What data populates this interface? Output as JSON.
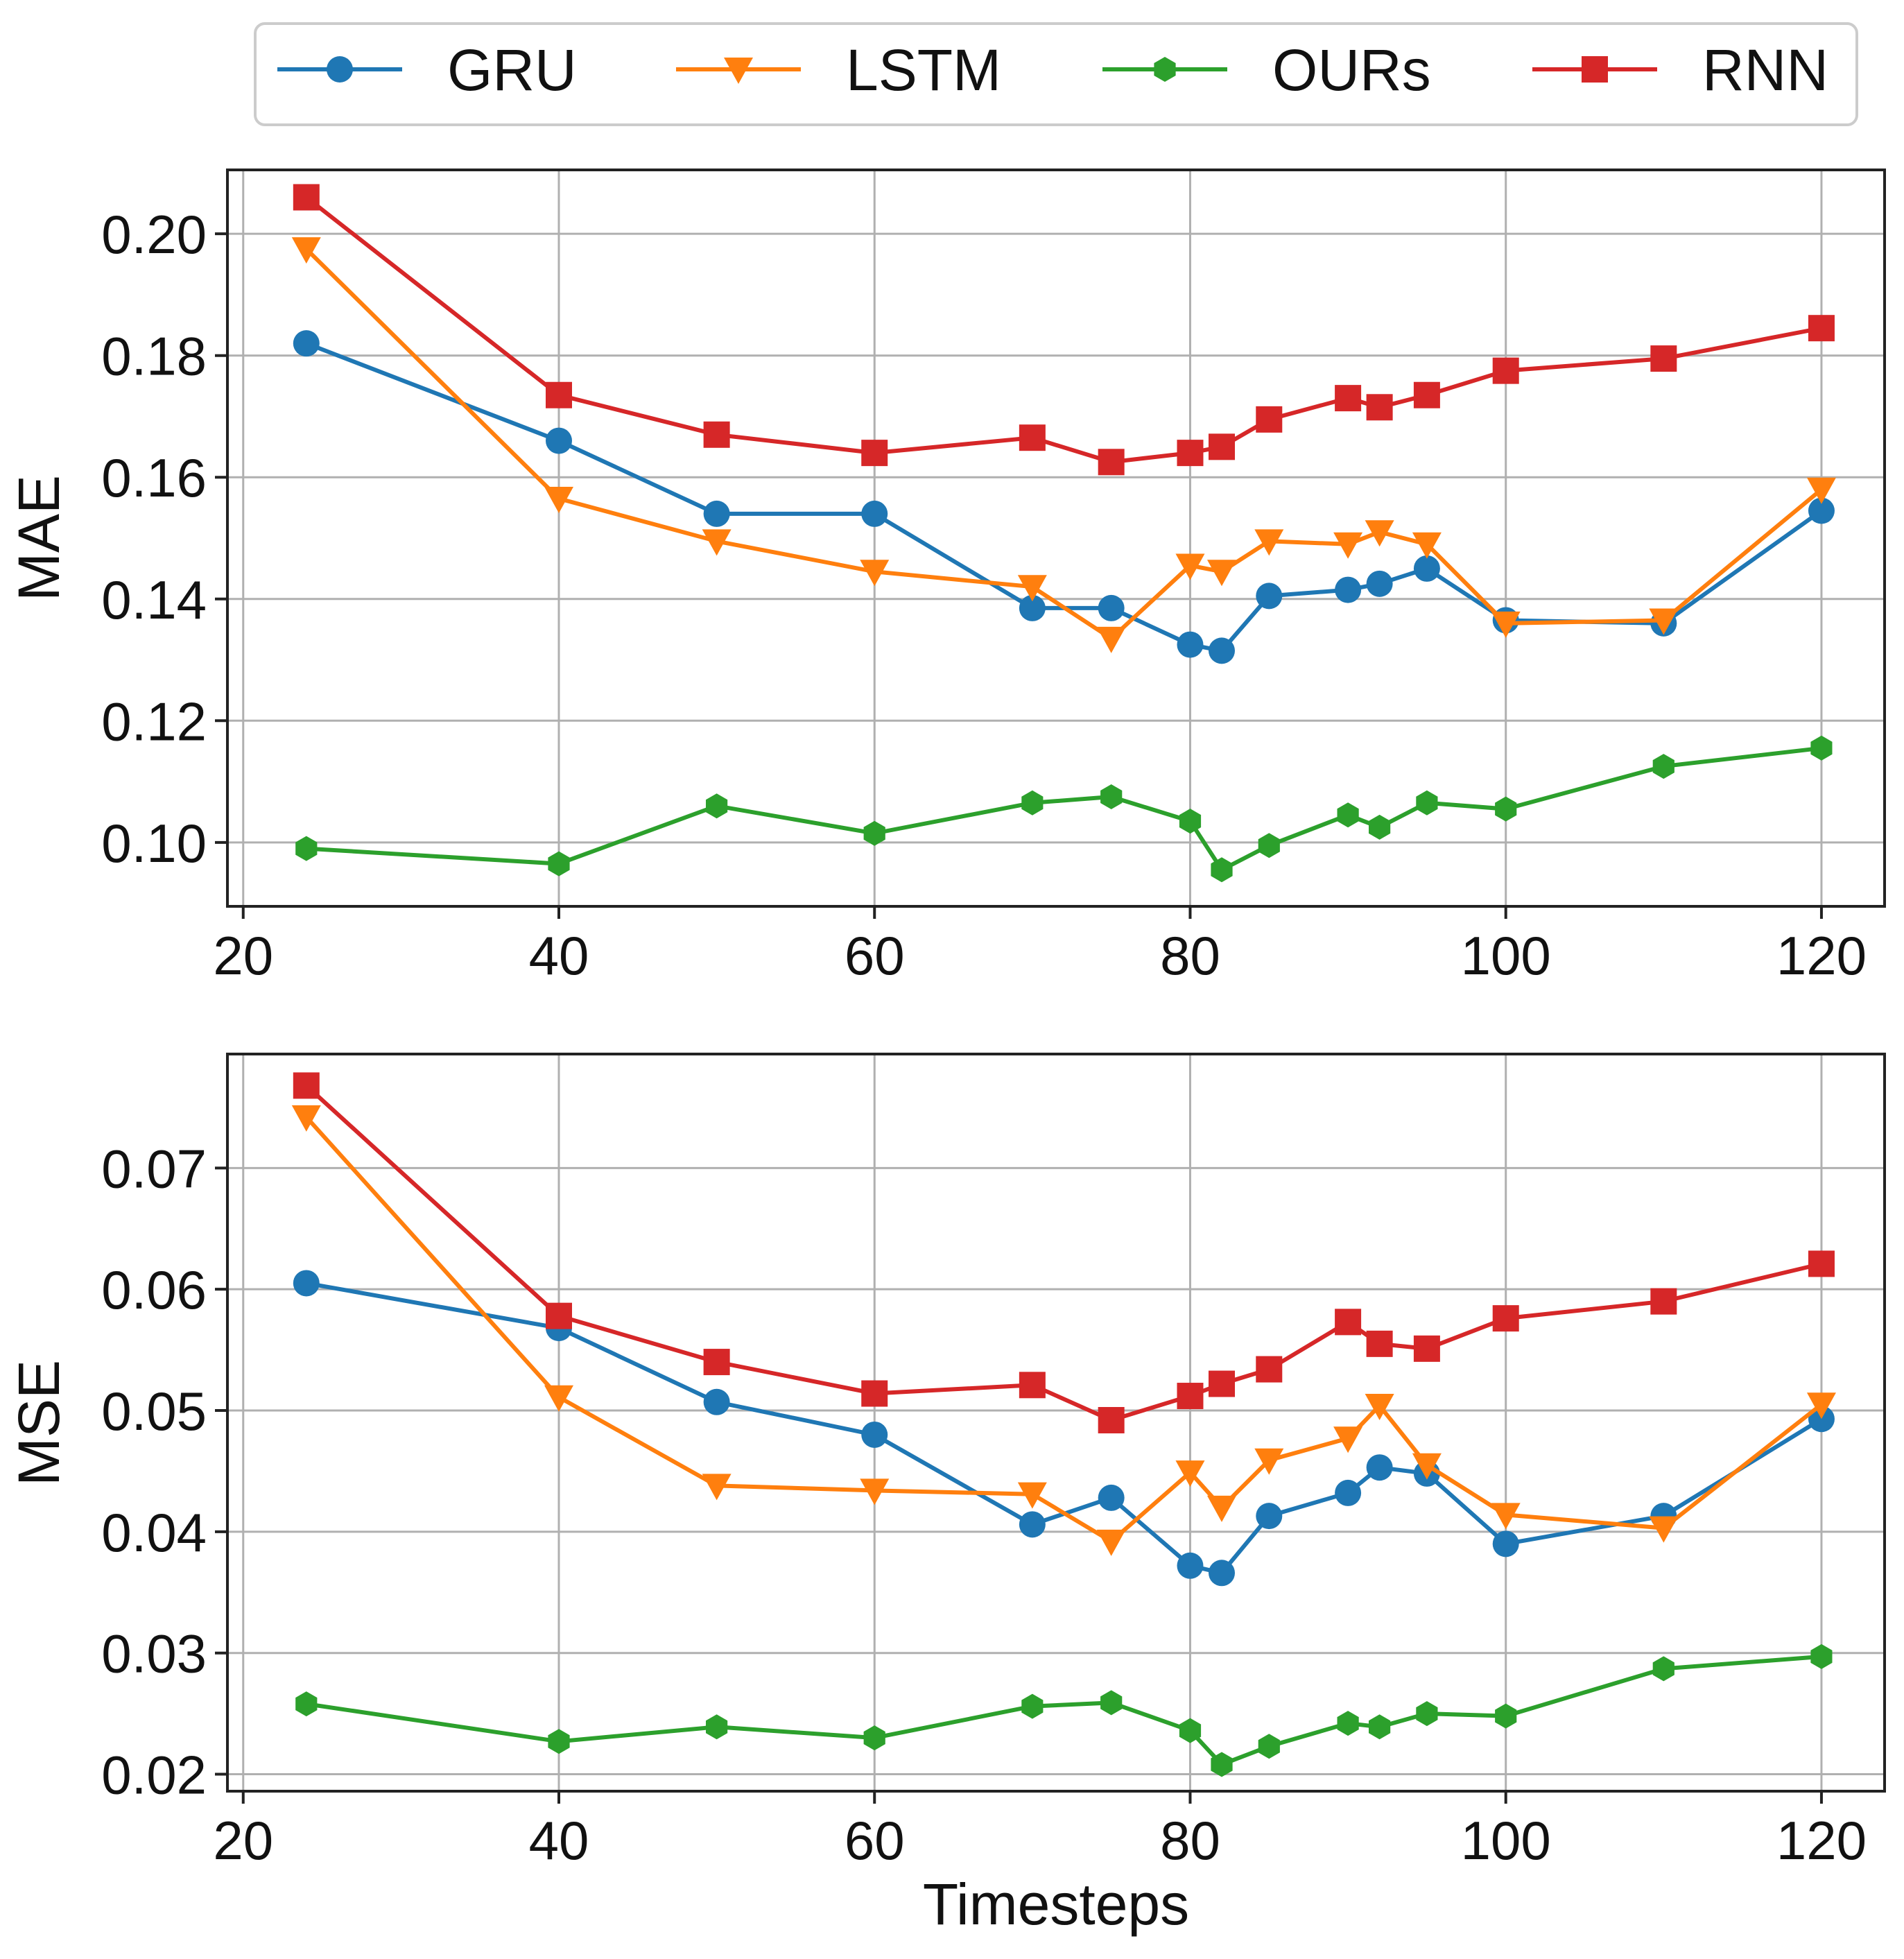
{
  "colors": {
    "GRU": "#1f77b4",
    "LSTM": "#ff7f0e",
    "OURs": "#2ca02c",
    "RNN": "#d62728",
    "grid": "#b0b0b0",
    "frame": "#222222"
  },
  "legend": {
    "entries": [
      {
        "name": "GRU",
        "marker": "circle"
      },
      {
        "name": "LSTM",
        "marker": "triangle-down"
      },
      {
        "name": "OURs",
        "marker": "hexagon"
      },
      {
        "name": "RNN",
        "marker": "square"
      }
    ]
  },
  "chart_data": [
    {
      "type": "line",
      "id": "mae",
      "title": "",
      "xlabel": "",
      "ylabel": "MAE",
      "xlim": [
        19,
        124
      ],
      "ylim": [
        0.0895,
        0.2105
      ],
      "xticks": [
        20,
        40,
        60,
        80,
        100,
        120
      ],
      "yticks": [
        0.1,
        0.12,
        0.14,
        0.16,
        0.18,
        0.2
      ],
      "ytick_labels": [
        "0.10",
        "0.12",
        "0.14",
        "0.16",
        "0.18",
        "0.20"
      ],
      "grid": true,
      "x": [
        24,
        40,
        50,
        60,
        70,
        75,
        80,
        82,
        85,
        90,
        92,
        95,
        100,
        110,
        120
      ],
      "series": [
        {
          "name": "GRU",
          "values": [
            0.182,
            0.166,
            0.154,
            0.154,
            0.1385,
            0.1385,
            0.1325,
            0.1315,
            0.1405,
            0.1415,
            0.1425,
            0.145,
            0.1365,
            0.136,
            0.1545
          ]
        },
        {
          "name": "LSTM",
          "values": [
            0.1975,
            0.1565,
            0.1495,
            0.1445,
            0.142,
            0.1335,
            0.1455,
            0.1445,
            0.1495,
            0.149,
            0.151,
            0.149,
            0.136,
            0.1365,
            0.158
          ]
        },
        {
          "name": "OURs",
          "values": [
            0.099,
            0.0965,
            0.106,
            0.1015,
            0.1065,
            0.1075,
            0.1035,
            0.0955,
            0.0995,
            0.1045,
            0.1025,
            0.1065,
            0.1055,
            0.1125,
            0.1155
          ]
        },
        {
          "name": "RNN",
          "values": [
            0.206,
            0.1735,
            0.167,
            0.164,
            0.1665,
            0.1625,
            0.164,
            0.165,
            0.1695,
            0.173,
            0.1715,
            0.1735,
            0.1775,
            0.1795,
            0.1845
          ]
        }
      ]
    },
    {
      "type": "line",
      "id": "mse",
      "title": "",
      "xlabel": "Timesteps",
      "ylabel": "MSE",
      "xlim": [
        19,
        124
      ],
      "ylim": [
        0.0186,
        0.0794
      ],
      "xticks": [
        20,
        40,
        60,
        80,
        100,
        120
      ],
      "yticks": [
        0.02,
        0.03,
        0.04,
        0.05,
        0.06,
        0.07
      ],
      "ytick_labels": [
        "0.02",
        "0.03",
        "0.04",
        "0.05",
        "0.06",
        "0.07"
      ],
      "grid": true,
      "x": [
        24,
        40,
        50,
        60,
        70,
        75,
        80,
        82,
        85,
        90,
        92,
        95,
        100,
        110,
        120
      ],
      "series": [
        {
          "name": "GRU",
          "values": [
            0.0605,
            0.0568,
            0.0507,
            0.048,
            0.0406,
            0.0428,
            0.0372,
            0.0366,
            0.0413,
            0.0432,
            0.0453,
            0.0448,
            0.039,
            0.0413,
            0.0493
          ]
        },
        {
          "name": "LSTM",
          "values": [
            0.0742,
            0.0511,
            0.0438,
            0.0434,
            0.0431,
            0.0392,
            0.0449,
            0.042,
            0.0459,
            0.0477,
            0.0504,
            0.0455,
            0.0414,
            0.0403,
            0.0505
          ]
        },
        {
          "name": "OURs",
          "values": [
            0.0258,
            0.0227,
            0.0239,
            0.023,
            0.0256,
            0.0259,
            0.0236,
            0.0208,
            0.0223,
            0.0242,
            0.0239,
            0.025,
            0.0248,
            0.0287,
            0.0297
          ]
        },
        {
          "name": "RNN",
          "values": [
            0.0768,
            0.0578,
            0.054,
            0.0514,
            0.0521,
            0.0492,
            0.0512,
            0.0522,
            0.0534,
            0.0573,
            0.0555,
            0.0551,
            0.0576,
            0.059,
            0.0621
          ]
        }
      ]
    }
  ]
}
